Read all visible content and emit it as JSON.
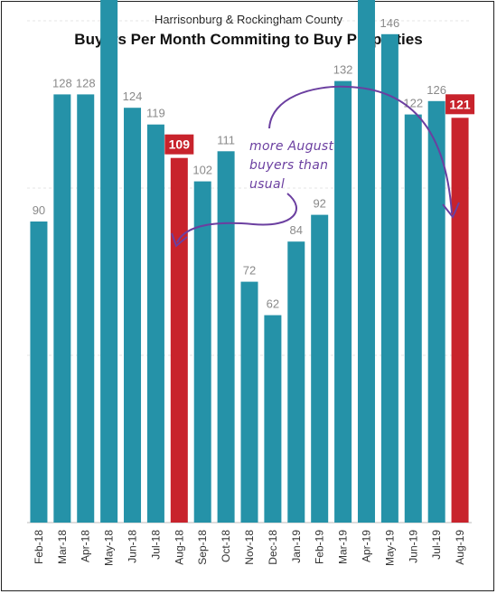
{
  "header": {
    "subtitle": "Harrisonburg & Rockingham County",
    "title": "Buyers Per Month Commiting to Buy Properties"
  },
  "annotation": {
    "lines": [
      "more August",
      "buyers than",
      "usual"
    ]
  },
  "colors": {
    "bar": "#2592a8",
    "highlight": "#c8232c",
    "label": "#8a8a8a",
    "annotation": "#6b3fa0"
  },
  "chart_data": {
    "type": "bar",
    "title": "Buyers Per Month Commiting to Buy Properties",
    "categories": [
      "Feb-18",
      "Mar-18",
      "Apr-18",
      "May-18",
      "Jun-18",
      "Jul-18",
      "Aug-18",
      "Sep-18",
      "Oct-18",
      "Nov-18",
      "Dec-18",
      "Jan-19",
      "Feb-19",
      "Mar-19",
      "Apr-19",
      "May-19",
      "Jun-19",
      "Jul-19",
      "Aug-19"
    ],
    "values": [
      90,
      128,
      128,
      171,
      124,
      119,
      109,
      102,
      111,
      72,
      62,
      84,
      92,
      132,
      158,
      146,
      122,
      126,
      121
    ],
    "highlighted": [
      "Aug-18",
      "Aug-19"
    ],
    "ylim": [
      0,
      180
    ],
    "grid": true,
    "xlabel": "",
    "ylabel": ""
  }
}
